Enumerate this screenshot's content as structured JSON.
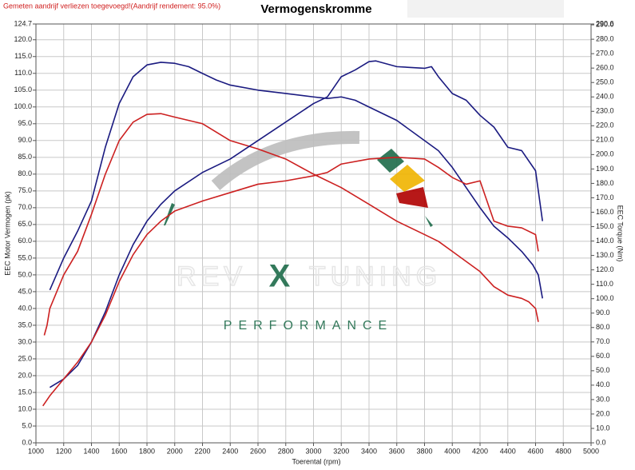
{
  "chart_data": {
    "type": "line",
    "title": "Vermogenskromme",
    "warning": "Gemeten aandrijf verliezen toegevoegd!(Aandrijf rendement: 95.0%)",
    "x_label": "Toerental (rpm)",
    "y_label": "EEC Motor Vermogen (pk)",
    "y2_label": "EEC Torque (Nm)",
    "watermark": {
      "brand": [
        "REV",
        "X",
        "TUNING"
      ],
      "tagline": "PERFORMANCE"
    },
    "xlim": [
      1000,
      5000
    ],
    "xticks": [
      1000,
      1200,
      1400,
      1600,
      1800,
      2000,
      2200,
      2400,
      2600,
      2800,
      3000,
      3200,
      3400,
      3600,
      3800,
      4000,
      4200,
      4400,
      4600,
      4800,
      5000
    ],
    "ylim": [
      0,
      124.7
    ],
    "yticks": [
      {
        "value": 0,
        "label": "0.0"
      },
      {
        "value": 5,
        "label": "5.0"
      },
      {
        "value": 10,
        "label": "10.0"
      },
      {
        "value": 15,
        "label": "15.0"
      },
      {
        "value": 20,
        "label": "20.0"
      },
      {
        "value": 25,
        "label": "25.0"
      },
      {
        "value": 30,
        "label": "30.0"
      },
      {
        "value": 35,
        "label": "35.0"
      },
      {
        "value": 40,
        "label": "40.0"
      },
      {
        "value": 45,
        "label": "45.0"
      },
      {
        "value": 50,
        "label": "50.0"
      },
      {
        "value": 55,
        "label": "55.0"
      },
      {
        "value": 60,
        "label": "60.0"
      },
      {
        "value": 65,
        "label": "65.0"
      },
      {
        "value": 70,
        "label": "70.0"
      },
      {
        "value": 75,
        "label": "75.0"
      },
      {
        "value": 80,
        "label": "80.0"
      },
      {
        "value": 85,
        "label": "85.0"
      },
      {
        "value": 90,
        "label": "90.0"
      },
      {
        "value": 95,
        "label": "95.0"
      },
      {
        "value": 100,
        "label": "100.0"
      },
      {
        "value": 105,
        "label": "105.0"
      },
      {
        "value": 110,
        "label": "110.0"
      },
      {
        "value": 115,
        "label": "115.0"
      },
      {
        "value": 120,
        "label": "120.0"
      },
      124.7
    ],
    "y2lim": [
      0,
      290.6
    ],
    "y2ticks": [
      {
        "value": 0,
        "label": "0.0"
      },
      {
        "value": 10,
        "label": "10.0"
      },
      {
        "value": 20,
        "label": "20.0"
      },
      {
        "value": 30,
        "label": "30.0"
      },
      {
        "value": 40,
        "label": "40.0"
      },
      {
        "value": 50,
        "label": "50.0"
      },
      {
        "value": 60,
        "label": "60.0"
      },
      {
        "value": 70,
        "label": "70.0"
      },
      {
        "value": 80,
        "label": "80.0"
      },
      {
        "value": 90,
        "label": "90.0"
      },
      {
        "value": 100,
        "label": "100.0"
      },
      {
        "value": 110,
        "label": "110.0"
      },
      {
        "value": 120,
        "label": "120.0"
      },
      {
        "value": 130,
        "label": "130.0"
      },
      {
        "value": 140,
        "label": "140.0"
      },
      {
        "value": 150,
        "label": "150.0"
      },
      {
        "value": 160,
        "label": "160.0"
      },
      {
        "value": 170,
        "label": "170.0"
      },
      {
        "value": 180,
        "label": "180.0"
      },
      {
        "value": 190,
        "label": "190.0"
      },
      {
        "value": 200,
        "label": "200.0"
      },
      {
        "value": 210,
        "label": "210.0"
      },
      {
        "value": 220,
        "label": "220.0"
      },
      {
        "value": 230,
        "label": "230.0"
      },
      {
        "value": 240,
        "label": "240.0"
      },
      {
        "value": 250,
        "label": "250.0"
      },
      {
        "value": 260,
        "label": "260.0"
      },
      {
        "value": 270,
        "label": "270.0"
      },
      {
        "value": 280,
        "label": "280.0"
      },
      {
        "value": 290,
        "label": "290.0"
      },
      290.6
    ],
    "grid": true,
    "series": [
      {
        "color": "#1a1a80",
        "axis": "y2",
        "x": [
          1100,
          1200,
          1300,
          1400,
          1500,
          1600,
          1700,
          1800,
          1900,
          2000,
          2100,
          2200,
          2300,
          2400,
          2600,
          2800,
          3000,
          3100,
          3200,
          3300,
          3400,
          3600,
          3800,
          3900,
          4000,
          4200,
          4300,
          4400,
          4500,
          4580,
          4620,
          4650
        ],
        "values": [
          106,
          128.2,
          146.8,
          167.8,
          205.1,
          235.4,
          254.0,
          262.2,
          264.0,
          263.3,
          261.0,
          256.3,
          251.7,
          248.2,
          244.7,
          242.4,
          240.0,
          238.9,
          240.0,
          237.7,
          233.0,
          223.7,
          209.7,
          202.7,
          191.1,
          163.1,
          150.3,
          142.2,
          132.8,
          123.5,
          116.5,
          100.2
        ]
      },
      {
        "color": "#cc2020",
        "axis": "y2",
        "x": [
          1060,
          1080,
          1100,
          1200,
          1300,
          1400,
          1500,
          1600,
          1700,
          1800,
          1900,
          2000,
          2200,
          2400,
          2600,
          2800,
          3000,
          3200,
          3400,
          3600,
          3800,
          3900,
          4000,
          4200,
          4300,
          4400,
          4500,
          4550,
          4600,
          4620
        ],
        "values": [
          74.6,
          81.6,
          93.2,
          116.5,
          132.8,
          158.5,
          186.4,
          209.7,
          222.5,
          227.9,
          228.4,
          226.0,
          221.4,
          209.7,
          203.9,
          196.9,
          186.4,
          177.1,
          165.5,
          153.8,
          144.5,
          139.8,
          132.8,
          118.8,
          108.4,
          102.5,
          100.2,
          97.9,
          93.2,
          83.9
        ]
      },
      {
        "color": "#1a1a80",
        "x": [
          1100,
          1200,
          1300,
          1400,
          1500,
          1600,
          1700,
          1800,
          1900,
          2000,
          2200,
          2400,
          2600,
          2800,
          3000,
          3100,
          3200,
          3300,
          3400,
          3450,
          3600,
          3800,
          3850,
          3900,
          4000,
          4100,
          4200,
          4300,
          4400,
          4500,
          4600,
          4650
        ],
        "values": [
          16.5,
          19,
          23,
          30,
          39,
          50,
          59,
          66,
          71,
          75,
          80.5,
          84.5,
          90,
          95.5,
          101,
          103,
          109,
          111,
          113.5,
          113.7,
          112,
          111.5,
          112,
          109,
          104,
          102,
          97.5,
          94,
          88,
          87,
          81,
          66
        ]
      },
      {
        "color": "#cc2020",
        "x": [
          1050,
          1100,
          1200,
          1300,
          1400,
          1500,
          1600,
          1700,
          1800,
          1900,
          2000,
          2200,
          2400,
          2600,
          2800,
          3000,
          3100,
          3200,
          3400,
          3600,
          3800,
          3900,
          4000,
          4100,
          4200,
          4300,
          4400,
          4500,
          4600,
          4620
        ],
        "values": [
          11,
          14,
          19,
          24,
          30,
          38,
          48,
          56,
          62,
          66,
          69,
          72,
          74.5,
          77,
          78,
          79.5,
          80.5,
          83,
          84.5,
          85,
          84.5,
          82,
          79,
          77,
          78,
          66,
          64.5,
          64,
          62,
          57
        ]
      }
    ]
  }
}
